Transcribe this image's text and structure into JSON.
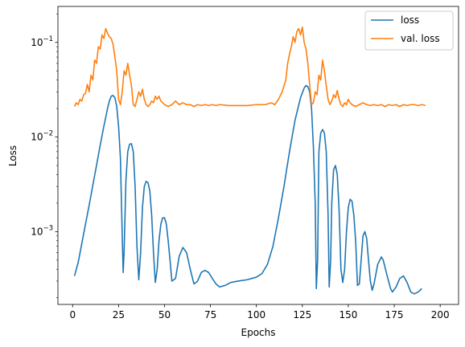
{
  "chart_data": {
    "type": "line",
    "xlabel": "Epochs",
    "ylabel": "Loss",
    "yscale": "log",
    "xlim": [
      -8,
      210
    ],
    "ylim": [
      0.00017,
      0.24
    ],
    "x_ticks": [
      0,
      25,
      50,
      75,
      100,
      125,
      150,
      175,
      200
    ],
    "y_ticks": [
      {
        "value": 0.001,
        "base": "10",
        "exp": "−3"
      },
      {
        "value": 0.01,
        "base": "10",
        "exp": "−2"
      },
      {
        "value": 0.1,
        "base": "10",
        "exp": "−1"
      }
    ],
    "legend_position": "upper right",
    "series": [
      {
        "name": "loss",
        "color": "#1f77b4",
        "points": [
          [
            1,
            0.00034
          ],
          [
            3,
            0.00047
          ],
          [
            5,
            0.00075
          ],
          [
            7,
            0.0012
          ],
          [
            9,
            0.0019
          ],
          [
            11,
            0.0031
          ],
          [
            13,
            0.005
          ],
          [
            15,
            0.0082
          ],
          [
            17,
            0.013
          ],
          [
            19,
            0.02
          ],
          [
            20,
            0.024
          ],
          [
            21,
            0.027
          ],
          [
            22,
            0.0275
          ],
          [
            23,
            0.026
          ],
          [
            24,
            0.021
          ],
          [
            25,
            0.013
          ],
          [
            26,
            0.006
          ],
          [
            27,
            0.0009
          ],
          [
            27.5,
            0.00037
          ],
          [
            28,
            0.0006
          ],
          [
            29,
            0.0035
          ],
          [
            30,
            0.007
          ],
          [
            31,
            0.0084
          ],
          [
            32,
            0.0085
          ],
          [
            33,
            0.007
          ],
          [
            34,
            0.003
          ],
          [
            35,
            0.0007
          ],
          [
            36,
            0.00031
          ],
          [
            37,
            0.0006
          ],
          [
            38,
            0.0018
          ],
          [
            39,
            0.003
          ],
          [
            40,
            0.0034
          ],
          [
            41,
            0.0033
          ],
          [
            42,
            0.0027
          ],
          [
            43,
            0.0015
          ],
          [
            44,
            0.0006
          ],
          [
            45,
            0.00029
          ],
          [
            46,
            0.0004
          ],
          [
            47,
            0.0008
          ],
          [
            48,
            0.0012
          ],
          [
            49,
            0.0014
          ],
          [
            50,
            0.0014
          ],
          [
            51,
            0.0012
          ],
          [
            52,
            0.0008
          ],
          [
            53,
            0.0005
          ],
          [
            54,
            0.0003
          ],
          [
            56,
            0.00032
          ],
          [
            58,
            0.00055
          ],
          [
            60,
            0.00068
          ],
          [
            62,
            0.0006
          ],
          [
            64,
            0.0004
          ],
          [
            66,
            0.00028
          ],
          [
            68,
            0.0003
          ],
          [
            70,
            0.00037
          ],
          [
            72,
            0.00039
          ],
          [
            74,
            0.00037
          ],
          [
            76,
            0.00032
          ],
          [
            78,
            0.00028
          ],
          [
            80,
            0.00026
          ],
          [
            83,
            0.00027
          ],
          [
            86,
            0.00029
          ],
          [
            90,
            0.0003
          ],
          [
            95,
            0.00031
          ],
          [
            100,
            0.00033
          ],
          [
            103,
            0.00036
          ],
          [
            106,
            0.00045
          ],
          [
            109,
            0.0007
          ],
          [
            112,
            0.0014
          ],
          [
            115,
            0.003
          ],
          [
            118,
            0.007
          ],
          [
            121,
            0.015
          ],
          [
            124,
            0.026
          ],
          [
            126,
            0.033
          ],
          [
            127,
            0.035
          ],
          [
            128,
            0.034
          ],
          [
            129,
            0.03
          ],
          [
            130,
            0.02
          ],
          [
            131,
            0.008
          ],
          [
            132,
            0.002
          ],
          [
            132.6,
            0.00025
          ],
          [
            133.3,
            0.0005
          ],
          [
            134,
            0.007
          ],
          [
            135,
            0.011
          ],
          [
            136,
            0.012
          ],
          [
            137,
            0.011
          ],
          [
            138,
            0.007
          ],
          [
            139,
            0.0015
          ],
          [
            139.6,
            0.00026
          ],
          [
            140.4,
            0.0005
          ],
          [
            141,
            0.002
          ],
          [
            142,
            0.0045
          ],
          [
            143,
            0.005
          ],
          [
            144,
            0.004
          ],
          [
            145,
            0.0017
          ],
          [
            146,
            0.0004
          ],
          [
            147,
            0.00029
          ],
          [
            148,
            0.0004
          ],
          [
            149,
            0.001
          ],
          [
            150,
            0.0018
          ],
          [
            151,
            0.0022
          ],
          [
            152,
            0.0021
          ],
          [
            153,
            0.0015
          ],
          [
            154,
            0.0008
          ],
          [
            155,
            0.00027
          ],
          [
            156,
            0.00028
          ],
          [
            157,
            0.0005
          ],
          [
            158,
            0.0009
          ],
          [
            159,
            0.001
          ],
          [
            160,
            0.00085
          ],
          [
            161,
            0.0005
          ],
          [
            162,
            0.0003
          ],
          [
            163,
            0.00024
          ],
          [
            164,
            0.00028
          ],
          [
            166,
            0.00045
          ],
          [
            168,
            0.00054
          ],
          [
            169,
            0.0005
          ],
          [
            171,
            0.00035
          ],
          [
            173,
            0.00025
          ],
          [
            174,
            0.00023
          ],
          [
            176,
            0.00026
          ],
          [
            178,
            0.00032
          ],
          [
            180,
            0.00034
          ],
          [
            182,
            0.00029
          ],
          [
            184,
            0.00023
          ],
          [
            186,
            0.00022
          ],
          [
            188,
            0.00023
          ],
          [
            190,
            0.00025
          ]
        ]
      },
      {
        "name": "val. loss",
        "color": "#ff7f0e",
        "points": [
          [
            1,
            0.021
          ],
          [
            2,
            0.023
          ],
          [
            3,
            0.022
          ],
          [
            4,
            0.025
          ],
          [
            5,
            0.024
          ],
          [
            6,
            0.028
          ],
          [
            7,
            0.029
          ],
          [
            8,
            0.036
          ],
          [
            9,
            0.03
          ],
          [
            10,
            0.045
          ],
          [
            11,
            0.04
          ],
          [
            12,
            0.065
          ],
          [
            13,
            0.06
          ],
          [
            14,
            0.09
          ],
          [
            15,
            0.085
          ],
          [
            16,
            0.12
          ],
          [
            17,
            0.11
          ],
          [
            18,
            0.14
          ],
          [
            19,
            0.125
          ],
          [
            20,
            0.115
          ],
          [
            21,
            0.11
          ],
          [
            22,
            0.095
          ],
          [
            23,
            0.07
          ],
          [
            24,
            0.05
          ],
          [
            25,
            0.025
          ],
          [
            26,
            0.022
          ],
          [
            27,
            0.03
          ],
          [
            28,
            0.05
          ],
          [
            29,
            0.045
          ],
          [
            30,
            0.06
          ],
          [
            31,
            0.045
          ],
          [
            32,
            0.035
          ],
          [
            33,
            0.022
          ],
          [
            34,
            0.021
          ],
          [
            35,
            0.025
          ],
          [
            36,
            0.03
          ],
          [
            37,
            0.027
          ],
          [
            38,
            0.032
          ],
          [
            39,
            0.025
          ],
          [
            40,
            0.022
          ],
          [
            41,
            0.021
          ],
          [
            42,
            0.022
          ],
          [
            43,
            0.024
          ],
          [
            44,
            0.023
          ],
          [
            45,
            0.027
          ],
          [
            46,
            0.025
          ],
          [
            47,
            0.027
          ],
          [
            48,
            0.024
          ],
          [
            49,
            0.023
          ],
          [
            50,
            0.022
          ],
          [
            52,
            0.021
          ],
          [
            54,
            0.022
          ],
          [
            56,
            0.024
          ],
          [
            58,
            0.022
          ],
          [
            60,
            0.023
          ],
          [
            62,
            0.022
          ],
          [
            64,
            0.022
          ],
          [
            66,
            0.021
          ],
          [
            68,
            0.022
          ],
          [
            70,
            0.0215
          ],
          [
            72,
            0.022
          ],
          [
            74,
            0.0215
          ],
          [
            76,
            0.022
          ],
          [
            78,
            0.0215
          ],
          [
            80,
            0.022
          ],
          [
            85,
            0.0215
          ],
          [
            90,
            0.0215
          ],
          [
            95,
            0.0215
          ],
          [
            100,
            0.022
          ],
          [
            105,
            0.022
          ],
          [
            108,
            0.023
          ],
          [
            110,
            0.022
          ],
          [
            112,
            0.025
          ],
          [
            114,
            0.03
          ],
          [
            116,
            0.04
          ],
          [
            117,
            0.06
          ],
          [
            118,
            0.075
          ],
          [
            119,
            0.09
          ],
          [
            120,
            0.115
          ],
          [
            121,
            0.1
          ],
          [
            122,
            0.13
          ],
          [
            123,
            0.14
          ],
          [
            124,
            0.12
          ],
          [
            125,
            0.145
          ],
          [
            126,
            0.1
          ],
          [
            127,
            0.085
          ],
          [
            128,
            0.06
          ],
          [
            129,
            0.035
          ],
          [
            130,
            0.022
          ],
          [
            131,
            0.023
          ],
          [
            132,
            0.03
          ],
          [
            133,
            0.028
          ],
          [
            134,
            0.045
          ],
          [
            135,
            0.04
          ],
          [
            136,
            0.065
          ],
          [
            137,
            0.05
          ],
          [
            138,
            0.035
          ],
          [
            139,
            0.025
          ],
          [
            140,
            0.022
          ],
          [
            141,
            0.024
          ],
          [
            142,
            0.028
          ],
          [
            143,
            0.026
          ],
          [
            144,
            0.031
          ],
          [
            145,
            0.025
          ],
          [
            146,
            0.022
          ],
          [
            147,
            0.021
          ],
          [
            148,
            0.023
          ],
          [
            149,
            0.022
          ],
          [
            150,
            0.025
          ],
          [
            151,
            0.023
          ],
          [
            152,
            0.022
          ],
          [
            154,
            0.021
          ],
          [
            156,
            0.022
          ],
          [
            158,
            0.023
          ],
          [
            160,
            0.022
          ],
          [
            162,
            0.0215
          ],
          [
            164,
            0.022
          ],
          [
            166,
            0.0215
          ],
          [
            168,
            0.022
          ],
          [
            170,
            0.021
          ],
          [
            172,
            0.022
          ],
          [
            174,
            0.0215
          ],
          [
            176,
            0.022
          ],
          [
            178,
            0.021
          ],
          [
            180,
            0.022
          ],
          [
            182,
            0.0215
          ],
          [
            184,
            0.022
          ],
          [
            186,
            0.022
          ],
          [
            188,
            0.0215
          ],
          [
            190,
            0.022
          ],
          [
            192,
            0.0215
          ]
        ]
      }
    ]
  }
}
